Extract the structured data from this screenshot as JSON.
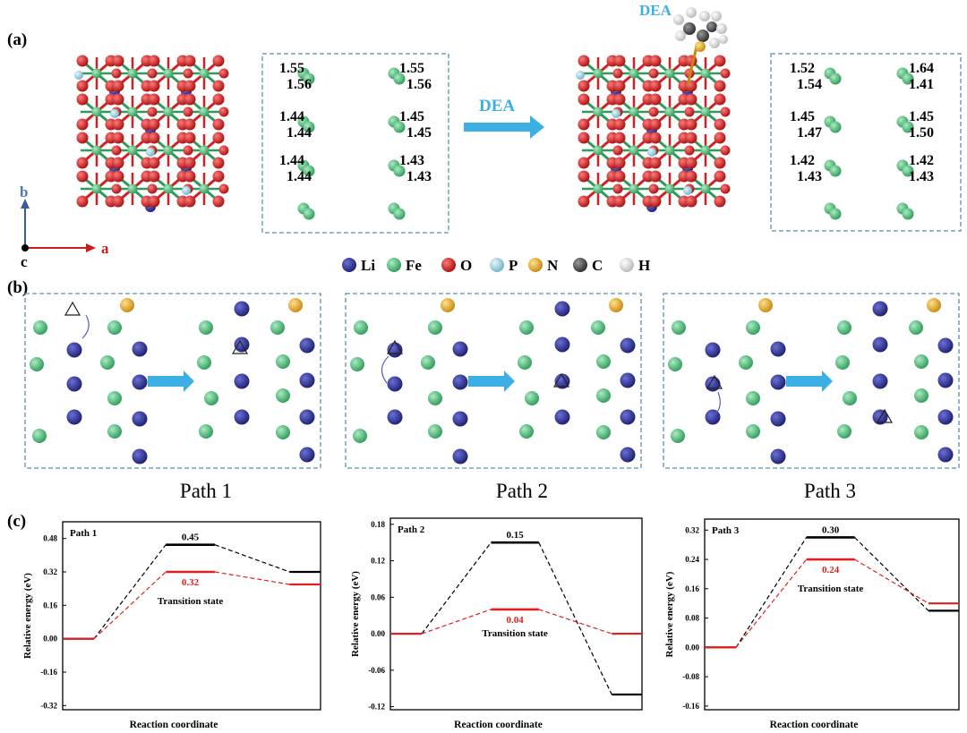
{
  "panel_labels": {
    "a": "(a)",
    "b": "(b)",
    "c": "(c)"
  },
  "panel_a": {
    "dea_label": "DEA",
    "arrow_label": "DEA",
    "axes": {
      "b": "b",
      "a": "a",
      "c": "c"
    },
    "box_left": {
      "pairs": [
        {
          "top": "1.55",
          "bottom": "1.56"
        },
        {
          "top": "1.55",
          "bottom": "1.56"
        },
        {
          "top": "1.44",
          "bottom": "1.44"
        },
        {
          "top": "1.45",
          "bottom": "1.45"
        },
        {
          "top": "1.44",
          "bottom": "1.44"
        },
        {
          "top": "1.43",
          "bottom": "1.43"
        }
      ]
    },
    "box_right": {
      "pairs": [
        {
          "top": "1.52",
          "bottom": "1.54"
        },
        {
          "top": "1.64",
          "bottom": "1.41"
        },
        {
          "top": "1.45",
          "bottom": "1.47"
        },
        {
          "top": "1.45",
          "bottom": "1.50"
        },
        {
          "top": "1.42",
          "bottom": "1.43"
        },
        {
          "top": "1.42",
          "bottom": "1.43"
        }
      ]
    },
    "legend": [
      {
        "label": "Li",
        "color": "#2b2f8f"
      },
      {
        "label": "Fe",
        "color": "#4fc27c"
      },
      {
        "label": "O",
        "color": "#d81f1f"
      },
      {
        "label": "P",
        "color": "#9fd3e3"
      },
      {
        "label": "N",
        "color": "#f0b030"
      },
      {
        "label": "C",
        "color": "#555555"
      },
      {
        "label": "H",
        "color": "#f2f2f2"
      }
    ]
  },
  "panel_b": {
    "paths": [
      "Path 1",
      "Path 2",
      "Path 3"
    ]
  },
  "colors": {
    "black_state": "#000000",
    "red_state": "#e02020",
    "box_border": "#5a8fa8",
    "arrow": "#3cb0e4"
  },
  "chart_data": [
    {
      "type": "line",
      "title": "Path 1",
      "xlabel": "Reaction coordinate",
      "ylabel": "Relative energy (eV)",
      "ylim": [
        -0.34,
        0.56
      ],
      "yticks": [
        "0.48",
        "0.32",
        "0.16",
        "0.00",
        "-0.16",
        "-0.32"
      ],
      "ytick_values": [
        0.48,
        0.32,
        0.16,
        0.0,
        -0.16,
        -0.32
      ],
      "annotation": "Transition state",
      "series": [
        {
          "color": "#000000",
          "initial": 0.0,
          "ts": 0.45,
          "final": 0.32,
          "ts_label": "0.45"
        },
        {
          "color": "#e02020",
          "initial": 0.0,
          "ts": 0.32,
          "final": 0.26,
          "ts_label": "0.32"
        }
      ]
    },
    {
      "type": "line",
      "title": "Path 2",
      "xlabel": "Reaction coordinate",
      "ylabel": "Relative energy (eV)",
      "ylim": [
        -0.125,
        0.19
      ],
      "yticks": [
        "0.18",
        "0.12",
        "0.06",
        "0.00",
        "-0.06",
        "-0.12"
      ],
      "ytick_values": [
        0.18,
        0.12,
        0.06,
        0.0,
        -0.06,
        -0.12
      ],
      "annotation": "Transition state",
      "series": [
        {
          "color": "#000000",
          "initial": 0.0,
          "ts": 0.15,
          "final": -0.1,
          "ts_label": "0.15"
        },
        {
          "color": "#e02020",
          "initial": 0.0,
          "ts": 0.04,
          "final": 0.0,
          "ts_label": "0.04"
        }
      ]
    },
    {
      "type": "line",
      "title": "Path 3",
      "xlabel": "Reaction coordinate",
      "ylabel": "Relative energy (eV)",
      "ylim": [
        -0.17,
        0.35
      ],
      "yticks": [
        "0.32",
        "0.24",
        "0.16",
        "0.08",
        "0.00",
        "-0.08",
        "-0.16"
      ],
      "ytick_values": [
        0.32,
        0.24,
        0.16,
        0.08,
        0.0,
        -0.08,
        -0.16
      ],
      "annotation": "Transition state",
      "series": [
        {
          "color": "#000000",
          "initial": 0.0,
          "ts": 0.3,
          "final": 0.1,
          "ts_label": "0.30"
        },
        {
          "color": "#e02020",
          "initial": 0.0,
          "ts": 0.24,
          "final": 0.12,
          "ts_label": "0.24"
        }
      ]
    }
  ]
}
